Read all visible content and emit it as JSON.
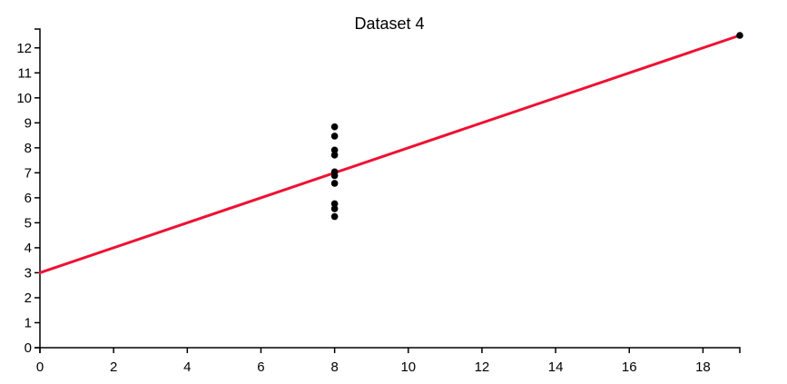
{
  "chart_data": {
    "type": "scatter",
    "title": "Dataset 4",
    "xlabel": "",
    "ylabel": "",
    "xlim": [
      0,
      19
    ],
    "ylim": [
      0,
      12.5
    ],
    "x_ticks": [
      0,
      2,
      4,
      6,
      8,
      10,
      12,
      14,
      16,
      18
    ],
    "y_ticks": [
      0,
      1,
      2,
      3,
      4,
      5,
      6,
      7,
      8,
      9,
      10,
      11,
      12
    ],
    "grid": false,
    "points": [
      {
        "x": 8,
        "y": 6.58
      },
      {
        "x": 8,
        "y": 5.76
      },
      {
        "x": 8,
        "y": 7.71
      },
      {
        "x": 8,
        "y": 8.84
      },
      {
        "x": 8,
        "y": 8.47
      },
      {
        "x": 8,
        "y": 7.04
      },
      {
        "x": 8,
        "y": 5.25
      },
      {
        "x": 19,
        "y": 12.5
      },
      {
        "x": 8,
        "y": 5.56
      },
      {
        "x": 8,
        "y": 7.91
      },
      {
        "x": 8,
        "y": 6.89
      }
    ],
    "fit_line": {
      "x": [
        0,
        19
      ],
      "y": [
        3.0,
        12.5
      ]
    },
    "colors": {
      "points": "#000000",
      "fit_line": "#ee1133",
      "axis": "#000000"
    }
  }
}
